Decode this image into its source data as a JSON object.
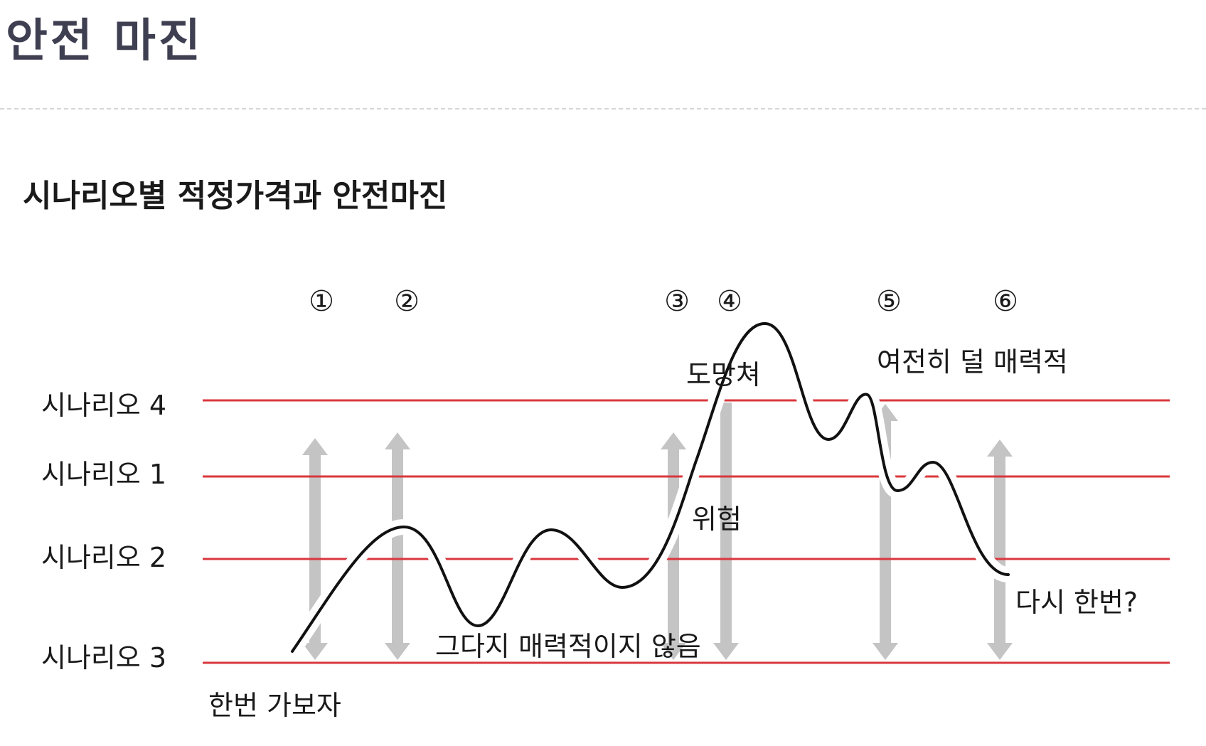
{
  "page": {
    "title": "안전 마진"
  },
  "diagram": {
    "title": "시나리오별 적정가격과 안전마진",
    "levels": [
      {
        "label": "시나리오 4"
      },
      {
        "label": "시나리오 1"
      },
      {
        "label": "시나리오 2"
      },
      {
        "label": "시나리오 3"
      }
    ],
    "markers": [
      "①",
      "②",
      "③",
      "④",
      "⑤",
      "⑥"
    ],
    "annotations": {
      "start": "한번 가보자",
      "not_attractive": "그다지 매력적이지 않음",
      "run_away": "도망쳐",
      "danger": "위험",
      "still_less_attractive": "여전히 덜 매력적",
      "once_again": "다시 한번?"
    },
    "colors": {
      "level_line": "#d9373c",
      "price_curve": "#111111",
      "margin_arrow": "#c4c4c4",
      "title": "#1a1a1a",
      "page_title": "#3f3f52"
    }
  }
}
